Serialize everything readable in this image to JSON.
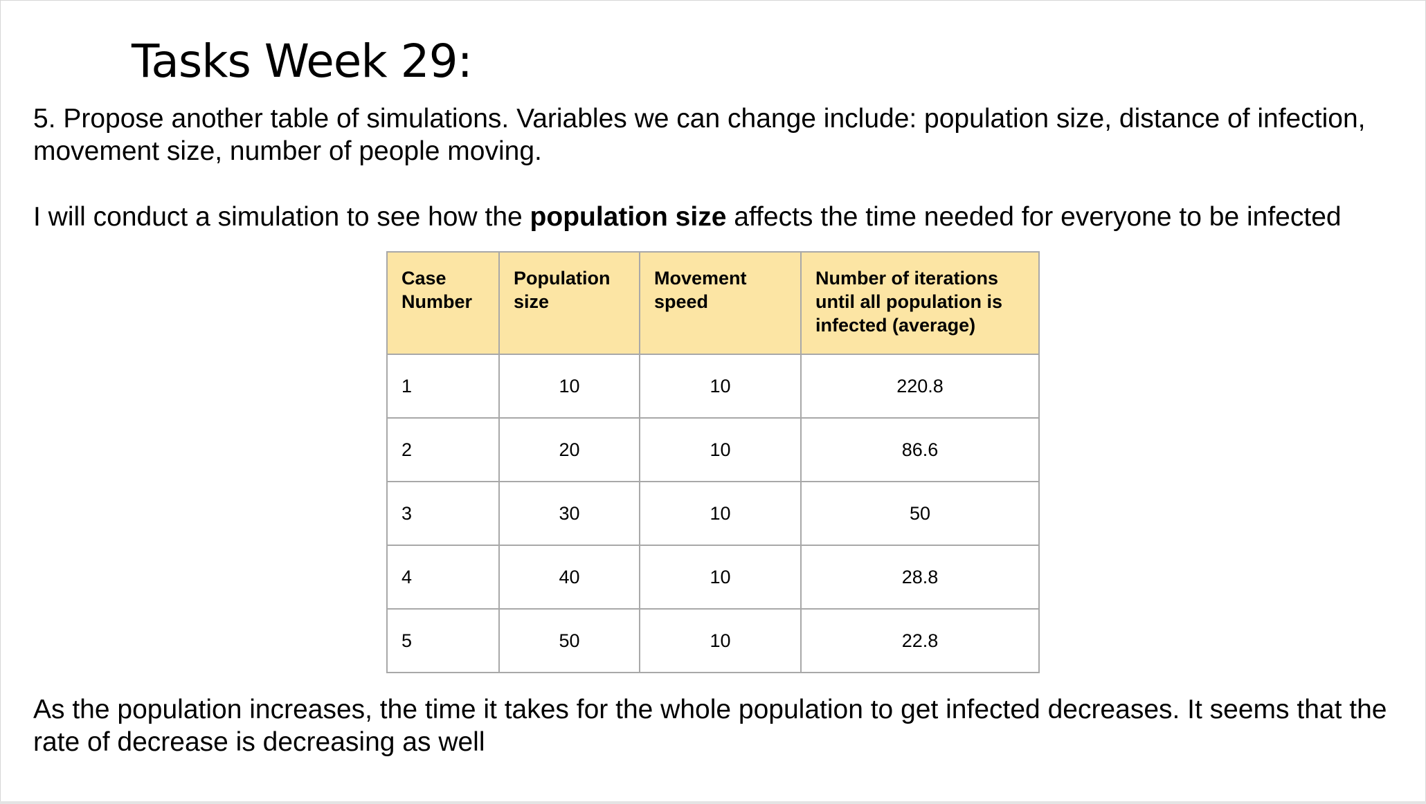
{
  "slide": {
    "title": "Tasks Week 29:",
    "task_text": "5. Propose another table of simulations. Variables we can change include: population size, distance of infection, movement size, number of people moving.",
    "intro": {
      "before": "I will conduct a simulation to see how the ",
      "bold": "population size",
      "after": " affects the time needed for everyone to be infected"
    },
    "conclusion": "As the population increases, the time it takes for the whole population to get infected decreases. It seems that the rate of decrease is decreasing as well"
  },
  "table": {
    "header_color": "#fce5a4",
    "headers": [
      "Case Number",
      "Population size",
      "Movement speed",
      "Number of iterations until all population is infected (average)"
    ],
    "rows": [
      [
        "1",
        "10",
        "10",
        "220.8"
      ],
      [
        "2",
        "20",
        "10",
        "86.6"
      ],
      [
        "3",
        "30",
        "10",
        "50"
      ],
      [
        "4",
        "40",
        "10",
        "28.8"
      ],
      [
        "5",
        "50",
        "10",
        "22.8"
      ]
    ]
  }
}
